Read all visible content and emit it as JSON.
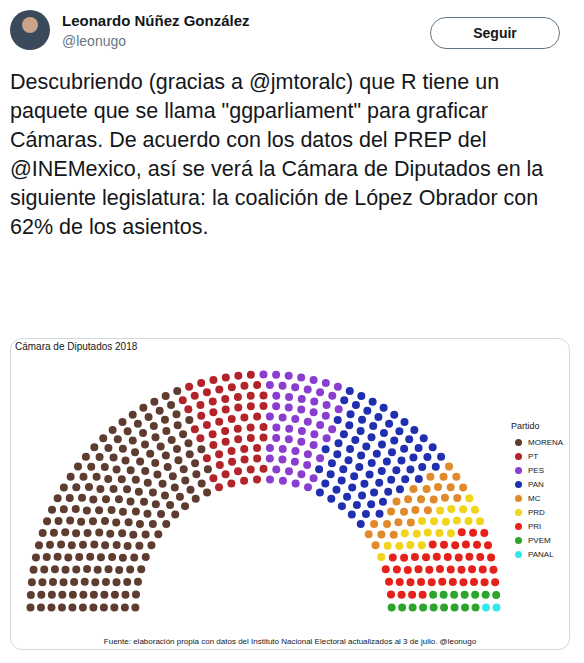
{
  "tweet": {
    "author": "Leonardo Núñez González",
    "handle": "@leonugo",
    "button": "Seguir",
    "text": "Descubriendo (gracias a @jmtoralc) que R tiene un paquete que se llama \"ggparliament\" para graficar Cámaras. De acuerdo con los datos del PREP del @INEMexico, así se verá la Cámara de Diputados en la siguiente legislatura: la coalición de López Obrador con 62% de los asientos."
  },
  "chart_data": {
    "type": "parliament",
    "title": "Cámara de Diputados 2018",
    "legend_title": "Partido",
    "caption": "Fuente: elaboración propia con datos del Instituto Nacional Electoral actualizados al 3 de julio. @leonugo",
    "categories": [
      "MORENA",
      "PT",
      "PES",
      "PAN",
      "MC",
      "PRD",
      "PRI",
      "PVEM",
      "PANAL"
    ],
    "values": [
      191,
      61,
      56,
      81,
      27,
      21,
      45,
      16,
      2
    ],
    "colors": [
      "#5e3c30",
      "#b3242a",
      "#8a3ecf",
      "#1f2fb0",
      "#e08a2c",
      "#f2d41c",
      "#e6201a",
      "#2ca52c",
      "#33e8e8"
    ],
    "legend": "right",
    "tick_labels": false
  }
}
